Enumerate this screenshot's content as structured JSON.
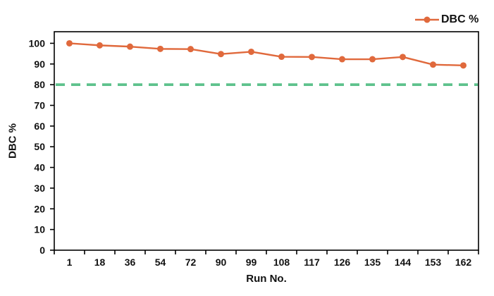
{
  "legend": {
    "label": "DBC %"
  },
  "colors": {
    "series": "#E0693C",
    "threshold": "#5EC28C",
    "axis": "#000000",
    "text": "#111111"
  },
  "chart_data": {
    "type": "line",
    "title": "",
    "xlabel": "Run No.",
    "ylabel": "DBC %",
    "categories": [
      "1",
      "18",
      "36",
      "54",
      "72",
      "90",
      "99",
      "108",
      "117",
      "126",
      "135",
      "144",
      "153",
      "162"
    ],
    "series": [
      {
        "name": "DBC %",
        "color": "#E0693C",
        "marker": "circle",
        "values": [
          100,
          99,
          98.4,
          97.3,
          97.2,
          94.8,
          95.9,
          93.5,
          93.4,
          92.3,
          92.3,
          93.4,
          89.7,
          89.3
        ]
      }
    ],
    "threshold_line": {
      "value": 80,
      "style": "dashed",
      "color": "#5EC28C"
    },
    "ylim": [
      0,
      105.6
    ],
    "yticks": [
      0,
      10,
      20,
      30,
      40,
      50,
      60,
      70,
      80,
      90,
      100
    ],
    "grid": false,
    "legend_position": "top-right"
  }
}
